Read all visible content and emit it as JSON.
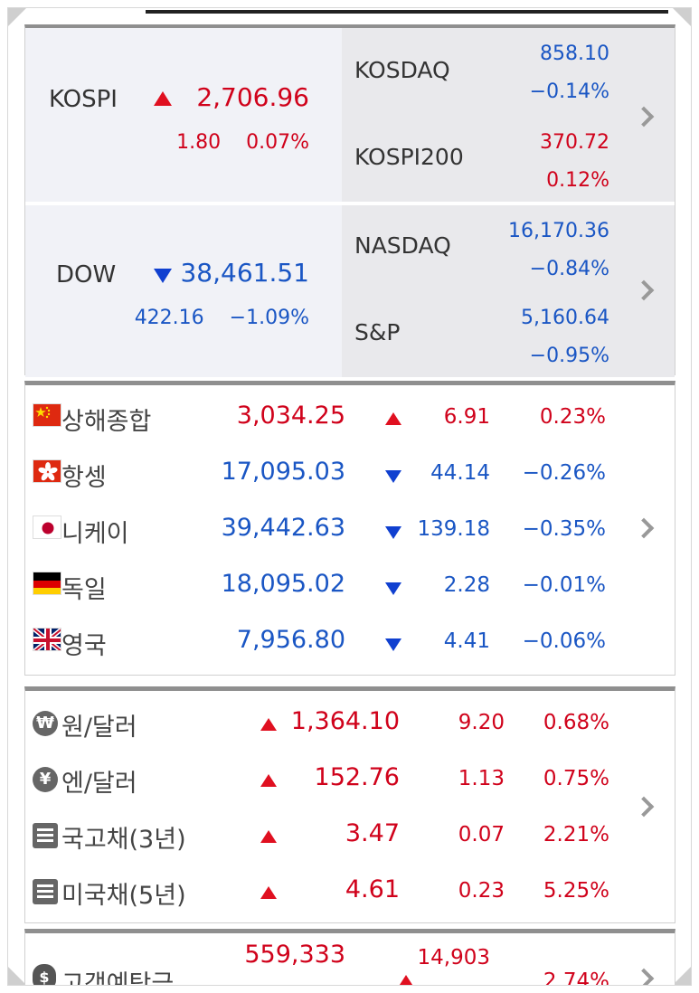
{
  "domestic": {
    "kospi": {
      "name": "KOSPI",
      "value": "2,706.96",
      "change": "1.80",
      "percent": "0.07%"
    },
    "kosdaq": {
      "name": "KOSDAQ",
      "value": "858.10",
      "percent": "−0.14%"
    },
    "kospi200": {
      "name": "KOSPI200",
      "value": "370.72",
      "percent": "0.12%"
    },
    "dow": {
      "name": "DOW",
      "value": "38,461.51",
      "change": "422.16",
      "percent": "−1.09%"
    },
    "nasdaq": {
      "name": "NASDAQ",
      "value": "16,170.36",
      "percent": "−0.84%"
    },
    "sp": {
      "name": "S&P",
      "value": "5,160.64",
      "percent": "−0.95%"
    }
  },
  "world": [
    {
      "flag": "china-flag-icon",
      "name": "상해종합",
      "value": "3,034.25",
      "direction": "up",
      "change": "6.91",
      "percent": "0.23%"
    },
    {
      "flag": "hongkong-flag-icon",
      "name": "항셍",
      "value": "17,095.03",
      "direction": "down",
      "change": "44.14",
      "percent": "−0.26%"
    },
    {
      "flag": "japan-flag-icon",
      "name": "니케이",
      "value": "39,442.63",
      "direction": "down",
      "change": "139.18",
      "percent": "−0.35%"
    },
    {
      "flag": "germany-flag-icon",
      "name": "독일",
      "value": "18,095.02",
      "direction": "down",
      "change": "2.28",
      "percent": "−0.01%"
    },
    {
      "flag": "uk-flag-icon",
      "name": "영국",
      "value": "7,956.80",
      "direction": "down",
      "change": "4.41",
      "percent": "−0.06%"
    }
  ],
  "fx": [
    {
      "icon": "won-icon",
      "symbol": "₩",
      "name": "원/달러",
      "value": "1,364.10",
      "direction": "up",
      "change": "9.20",
      "percent": "0.68%"
    },
    {
      "icon": "yen-icon",
      "symbol": "¥",
      "name": "엔/달러",
      "value": "152.76",
      "direction": "up",
      "change": "1.13",
      "percent": "0.75%"
    },
    {
      "icon": "document-icon",
      "name": "국고채(3년)",
      "value": "3.47",
      "direction": "up",
      "change": "0.07",
      "percent": "2.21%"
    },
    {
      "icon": "document-icon",
      "name": "미국채(5년)",
      "value": "4.61",
      "direction": "up",
      "change": "0.23",
      "percent": "5.25%"
    }
  ],
  "deposit": {
    "icon": "money-bag-icon",
    "symbol": "$",
    "name": "고객예탁금",
    "value": "559,333",
    "direction": "up",
    "change": "14,903",
    "percent": "2.74%"
  },
  "colors": {
    "up": "#d0021b",
    "down": "#1a56c4",
    "up_triangle": "#e01020",
    "down_triangle": "#1040d0"
  }
}
